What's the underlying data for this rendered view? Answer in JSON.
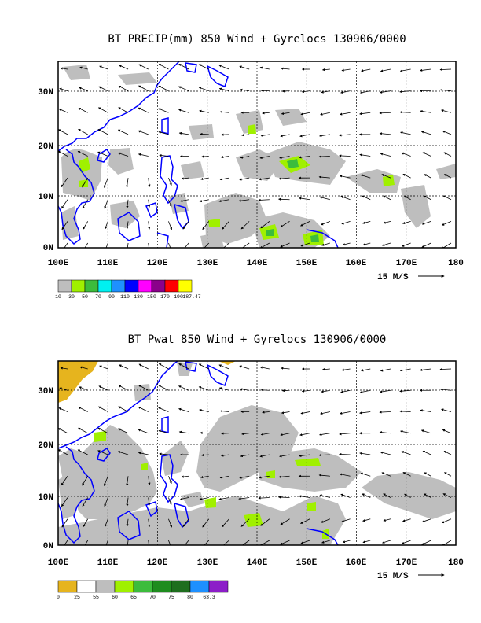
{
  "panels": [
    {
      "title": "BT PRECIP(mm) 850 Wind + Gyrelocs 130906/0000",
      "x_ticks": [
        "100E",
        "110E",
        "120E",
        "130E",
        "140E",
        "150E",
        "160E",
        "170E",
        "180"
      ],
      "y_ticks": [
        "0N",
        "10N",
        "20N",
        "30N"
      ],
      "scale_label": "15 M/S",
      "legend_labels": [
        "10",
        "30",
        "50",
        "70",
        "90",
        "110",
        "130",
        "150",
        "170",
        "190",
        "187.47"
      ],
      "legend_colors": [
        "#bebebe",
        "#a0f000",
        "#3cbc3c",
        "#00f0f0",
        "#1e90ff",
        "#0000ff",
        "#ff00ff",
        "#8b008b",
        "#ff0000",
        "#ffff00"
      ],
      "fill_color": "#bebebe",
      "highlight_color": "#a0f000",
      "dark_color": "#3cbc3c"
    },
    {
      "title": "BT Pwat 850 Wind + Gyrelocs 130906/0000",
      "x_ticks": [
        "100E",
        "110E",
        "120E",
        "130E",
        "140E",
        "150E",
        "160E",
        "170E",
        "180"
      ],
      "y_ticks": [
        "0N",
        "10N",
        "20N",
        "30N"
      ],
      "scale_label": "15 M/S",
      "legend_labels": [
        "0",
        "25",
        "55",
        "60",
        "65",
        "70",
        "75",
        "80",
        "63.3"
      ],
      "legend_colors": [
        "#e6b41e",
        "#ffffff",
        "#bebebe",
        "#a0f000",
        "#3cbc3c",
        "#1e8c1e",
        "#1e6e1e",
        "#1e90ff",
        "#8c1ec8"
      ],
      "fill_color": "#bebebe",
      "highlight_color": "#a0f000",
      "dark_color": "#e6b41e"
    }
  ],
  "coast_color": "#0000ff"
}
